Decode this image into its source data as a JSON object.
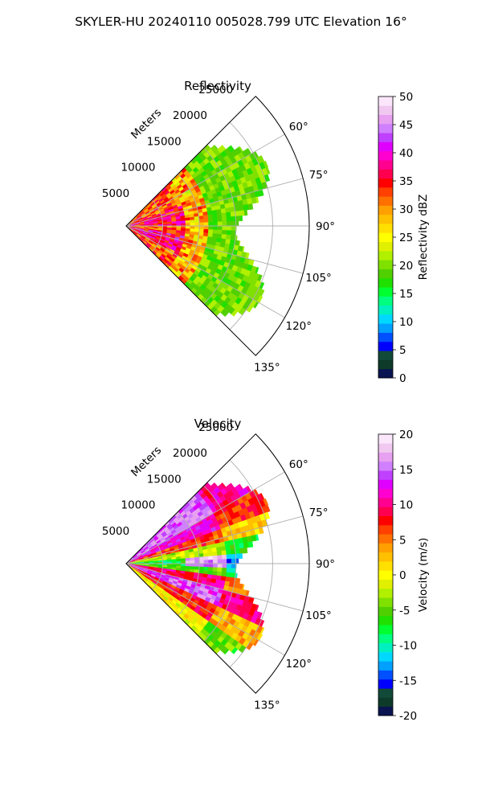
{
  "figure": {
    "suptitle": "SKYLER-HU  20240110  005028.799 UTC Elevation 16°"
  },
  "chart_data": [
    {
      "type": "heatmap",
      "subtype": "polar-sector (PPI)",
      "title": "Reflectivity",
      "radial_label": "Meters",
      "r_ticks": [
        5000,
        10000,
        15000,
        20000,
        25000
      ],
      "r_lim": [
        0,
        25000
      ],
      "theta_ticks_deg": [
        60,
        75,
        90,
        105,
        120,
        135
      ],
      "theta_range_deg": [
        45,
        135
      ],
      "grid": true,
      "colorbar": {
        "label": "Reflectivity dBZ",
        "range": [
          0,
          50
        ],
        "ticks": [
          0,
          5,
          10,
          15,
          20,
          25,
          30,
          35,
          40,
          45,
          50
        ],
        "colors": [
          "#0a1450",
          "#0e3a2a",
          "#124a3a",
          "#0000ff",
          "#0050ff",
          "#00a0ff",
          "#00d8ff",
          "#00f0c0",
          "#00ff80",
          "#00ff30",
          "#20e000",
          "#50d000",
          "#80e000",
          "#b0f000",
          "#e0f000",
          "#ffff00",
          "#ffe000",
          "#ffc000",
          "#ffa000",
          "#ff7000",
          "#ff4000",
          "#ff0000",
          "#ff0050",
          "#ff0090",
          "#ff00d0",
          "#e000ff",
          "#c040ff",
          "#d080ff",
          "#e8a0f0",
          "#f0c8f0",
          "#fbe6fb"
        ]
      },
      "data_extent_m": 18000,
      "data_extent_variation_m": 3000,
      "values_summary": "Sector filled to ~15-19 km; near range 25-38 dBZ (yellow/red), far range 15-22 dBZ (green)"
    },
    {
      "type": "heatmap",
      "subtype": "polar-sector (PPI)",
      "title": "Velocity",
      "radial_label": "Meters",
      "r_ticks": [
        5000,
        10000,
        15000,
        20000,
        25000
      ],
      "r_lim": [
        0,
        25000
      ],
      "theta_ticks_deg": [
        60,
        75,
        90,
        105,
        120,
        135
      ],
      "theta_range_deg": [
        45,
        135
      ],
      "grid": true,
      "colorbar": {
        "label": "Velocity (m/s)",
        "range": [
          -20,
          20
        ],
        "ticks": [
          -20,
          -15,
          -10,
          -5,
          0,
          5,
          10,
          15,
          20
        ],
        "colors": [
          "#0a1450",
          "#0e3a2a",
          "#124a3a",
          "#0000ff",
          "#0050ff",
          "#00a0ff",
          "#00d8ff",
          "#00f0c0",
          "#00ff80",
          "#00ff30",
          "#20e000",
          "#50d000",
          "#80e000",
          "#b0f000",
          "#e0f000",
          "#ffff00",
          "#ffe000",
          "#ffc000",
          "#ffa000",
          "#ff7000",
          "#ff4000",
          "#ff0000",
          "#ff0050",
          "#ff0090",
          "#ff00d0",
          "#e000ff",
          "#c040ff",
          "#d080ff",
          "#e8a0f0",
          "#f0c8f0",
          "#fbe6fb"
        ]
      },
      "data_extent_m": 18000,
      "data_extent_variation_m": 3000,
      "values_summary": "Banded velocity: +10 to +17 m/s near 50-70° and 100-125°, -8 to -12 m/s near 85-95° (cyan/green)"
    }
  ]
}
